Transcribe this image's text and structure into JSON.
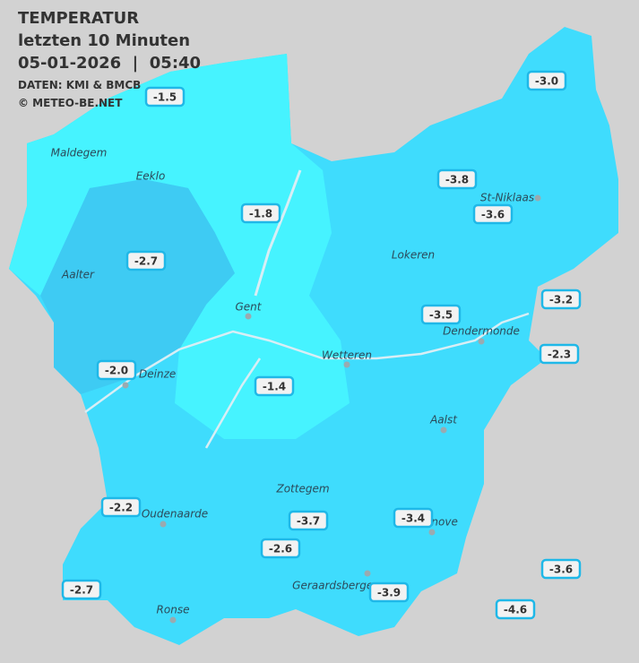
{
  "header": {
    "title": "TEMPERATUR",
    "subtitle": "letzten 10 Minuten",
    "datetime": "05-01-2026  |  05:40",
    "source": "DATEN: KMI & BMCB",
    "copyright": "© METEO-BE.NET"
  },
  "cities": [
    "Maldegem",
    "Eeklo",
    "Aalter",
    "Gent",
    "Wetteren",
    "Lokeren",
    "St-Niklaas",
    "Dendermonde",
    "Aalst",
    "Zottegem",
    "Oudenaarde",
    "Ronse",
    "Geraardsbergen",
    "Ninove",
    "Deinze"
  ],
  "stations": [
    "-1.5",
    "-3.0",
    "-3.8",
    "-3.6",
    "-1.8",
    "-2.7",
    "-3.2",
    "-3.5",
    "-2.3",
    "-2.0",
    "-1.4",
    "-2.2",
    "-3.7",
    "-3.4",
    "-2.6",
    "-3.6",
    "-2.7",
    "-3.9",
    "-4.6"
  ]
}
